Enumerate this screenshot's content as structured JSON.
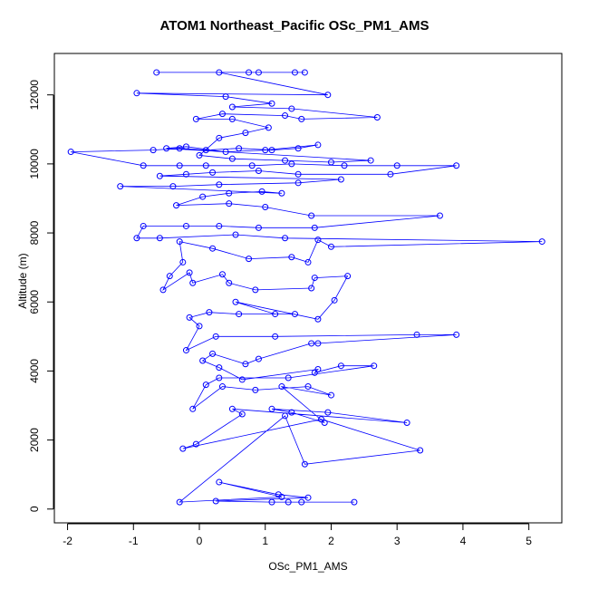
{
  "chart_data": {
    "type": "line",
    "title": "ATOM1 Northeast_Pacific OSc_PM1_AMS",
    "xlabel": "OSc_PM1_AMS",
    "ylabel": "Altitude (m)",
    "xlim": [
      -2.2,
      5.5
    ],
    "ylim": [
      -400,
      13200
    ],
    "x_ticks": [
      -2,
      -1,
      0,
      1,
      2,
      3,
      4,
      5
    ],
    "y_ticks": [
      0,
      2000,
      4000,
      6000,
      8000,
      10000,
      12000
    ],
    "series_color": "#0000ff",
    "marker": "open-circle",
    "grid": false,
    "points": [
      {
        "x": 2.35,
        "y": 200
      },
      {
        "x": 1.55,
        "y": 200
      },
      {
        "x": 1.35,
        "y": 200
      },
      {
        "x": 1.1,
        "y": 200
      },
      {
        "x": 0.25,
        "y": 230
      },
      {
        "x": 1.65,
        "y": 330
      },
      {
        "x": 1.2,
        "y": 420
      },
      {
        "x": 0.3,
        "y": 780
      },
      {
        "x": 1.25,
        "y": 350
      },
      {
        "x": -0.3,
        "y": 200
      },
      {
        "x": 1.3,
        "y": 2700
      },
      {
        "x": 1.6,
        "y": 1300
      },
      {
        "x": 3.35,
        "y": 1700
      },
      {
        "x": 1.85,
        "y": 2600
      },
      {
        "x": -0.25,
        "y": 1750
      },
      {
        "x": -0.05,
        "y": 1880
      },
      {
        "x": 0.65,
        "y": 2750
      },
      {
        "x": 0.5,
        "y": 2900
      },
      {
        "x": 3.15,
        "y": 2500
      },
      {
        "x": 1.95,
        "y": 2800
      },
      {
        "x": 1.1,
        "y": 2900
      },
      {
        "x": 1.4,
        "y": 2800
      },
      {
        "x": 1.9,
        "y": 2500
      },
      {
        "x": 1.25,
        "y": 3550
      },
      {
        "x": 2.0,
        "y": 3300
      },
      {
        "x": 1.65,
        "y": 3550
      },
      {
        "x": 0.85,
        "y": 3450
      },
      {
        "x": 0.35,
        "y": 3550
      },
      {
        "x": -0.1,
        "y": 2900
      },
      {
        "x": 0.1,
        "y": 3600
      },
      {
        "x": 0.3,
        "y": 3800
      },
      {
        "x": 1.35,
        "y": 3800
      },
      {
        "x": 2.65,
        "y": 4150
      },
      {
        "x": 2.15,
        "y": 4150
      },
      {
        "x": 1.75,
        "y": 3950
      },
      {
        "x": 1.8,
        "y": 4050
      },
      {
        "x": 0.65,
        "y": 3750
      },
      {
        "x": 0.3,
        "y": 4100
      },
      {
        "x": 0.05,
        "y": 4300
      },
      {
        "x": 0.2,
        "y": 4500
      },
      {
        "x": 0.7,
        "y": 4200
      },
      {
        "x": 0.9,
        "y": 4350
      },
      {
        "x": 1.7,
        "y": 4800
      },
      {
        "x": 1.8,
        "y": 4800
      },
      {
        "x": 3.9,
        "y": 5050
      },
      {
        "x": 3.3,
        "y": 5050
      },
      {
        "x": 1.15,
        "y": 5000
      },
      {
        "x": 0.25,
        "y": 5000
      },
      {
        "x": -0.2,
        "y": 4600
      },
      {
        "x": 0.0,
        "y": 5300
      },
      {
        "x": -0.15,
        "y": 5550
      },
      {
        "x": 0.15,
        "y": 5700
      },
      {
        "x": 0.6,
        "y": 5650
      },
      {
        "x": 1.45,
        "y": 5650
      },
      {
        "x": 1.15,
        "y": 5650
      },
      {
        "x": 0.55,
        "y": 6000
      },
      {
        "x": 1.8,
        "y": 5500
      },
      {
        "x": 2.05,
        "y": 6050
      },
      {
        "x": 2.25,
        "y": 6750
      },
      {
        "x": 1.75,
        "y": 6700
      },
      {
        "x": 1.7,
        "y": 6400
      },
      {
        "x": 0.85,
        "y": 6350
      },
      {
        "x": 0.45,
        "y": 6550
      },
      {
        "x": 0.35,
        "y": 6800
      },
      {
        "x": -0.1,
        "y": 6550
      },
      {
        "x": -0.15,
        "y": 6850
      },
      {
        "x": -0.55,
        "y": 6350
      },
      {
        "x": -0.45,
        "y": 6750
      },
      {
        "x": -0.25,
        "y": 7150
      },
      {
        "x": -0.3,
        "y": 7750
      },
      {
        "x": 0.2,
        "y": 7550
      },
      {
        "x": 0.75,
        "y": 7250
      },
      {
        "x": 1.4,
        "y": 7300
      },
      {
        "x": 1.65,
        "y": 7150
      },
      {
        "x": 1.8,
        "y": 7800
      },
      {
        "x": 2.0,
        "y": 7600
      },
      {
        "x": 5.2,
        "y": 7750
      },
      {
        "x": 1.3,
        "y": 7850
      },
      {
        "x": 0.55,
        "y": 7950
      },
      {
        "x": -0.6,
        "y": 7850
      },
      {
        "x": -0.95,
        "y": 7850
      },
      {
        "x": -0.85,
        "y": 8200
      },
      {
        "x": -0.2,
        "y": 8200
      },
      {
        "x": 0.3,
        "y": 8200
      },
      {
        "x": 0.9,
        "y": 8150
      },
      {
        "x": 1.75,
        "y": 8150
      },
      {
        "x": 3.65,
        "y": 8500
      },
      {
        "x": 1.7,
        "y": 8500
      },
      {
        "x": 1.0,
        "y": 8750
      },
      {
        "x": 0.45,
        "y": 8850
      },
      {
        "x": -0.35,
        "y": 8800
      },
      {
        "x": 0.05,
        "y": 9050
      },
      {
        "x": 0.45,
        "y": 9150
      },
      {
        "x": 0.95,
        "y": 9200
      },
      {
        "x": 1.25,
        "y": 9150
      },
      {
        "x": -1.2,
        "y": 9350
      },
      {
        "x": -0.4,
        "y": 9350
      },
      {
        "x": 0.3,
        "y": 9400
      },
      {
        "x": 1.5,
        "y": 9450
      },
      {
        "x": 2.15,
        "y": 9550
      },
      {
        "x": -0.6,
        "y": 9650
      },
      {
        "x": -0.2,
        "y": 9700
      },
      {
        "x": 0.2,
        "y": 9750
      },
      {
        "x": 0.9,
        "y": 9800
      },
      {
        "x": 1.5,
        "y": 9700
      },
      {
        "x": 2.9,
        "y": 9700
      },
      {
        "x": 3.9,
        "y": 9950
      },
      {
        "x": 3.0,
        "y": 9950
      },
      {
        "x": 2.2,
        "y": 9950
      },
      {
        "x": 1.4,
        "y": 10000
      },
      {
        "x": 0.8,
        "y": 9950
      },
      {
        "x": 0.1,
        "y": 9950
      },
      {
        "x": -0.3,
        "y": 9950
      },
      {
        "x": -0.85,
        "y": 9950
      },
      {
        "x": -1.95,
        "y": 10350
      },
      {
        "x": -0.7,
        "y": 10400
      },
      {
        "x": -0.3,
        "y": 10450
      },
      {
        "x": 0.1,
        "y": 10400
      },
      {
        "x": 0.6,
        "y": 10450
      },
      {
        "x": 1.1,
        "y": 10400
      },
      {
        "x": 1.5,
        "y": 10450
      },
      {
        "x": 1.8,
        "y": 10550
      },
      {
        "x": 1.0,
        "y": 10400
      },
      {
        "x": 0.4,
        "y": 10350
      },
      {
        "x": -0.2,
        "y": 10500
      },
      {
        "x": -0.5,
        "y": 10450
      },
      {
        "x": 2.6,
        "y": 10100
      },
      {
        "x": 2.0,
        "y": 10050
      },
      {
        "x": 1.3,
        "y": 10100
      },
      {
        "x": 0.5,
        "y": 10150
      },
      {
        "x": 0.0,
        "y": 10250
      },
      {
        "x": 0.3,
        "y": 10750
      },
      {
        "x": 0.7,
        "y": 10900
      },
      {
        "x": 1.05,
        "y": 11050
      },
      {
        "x": 0.5,
        "y": 11300
      },
      {
        "x": -0.05,
        "y": 11300
      },
      {
        "x": 0.35,
        "y": 11450
      },
      {
        "x": 1.3,
        "y": 11400
      },
      {
        "x": 1.55,
        "y": 11300
      },
      {
        "x": 2.7,
        "y": 11350
      },
      {
        "x": 1.4,
        "y": 11600
      },
      {
        "x": 0.5,
        "y": 11650
      },
      {
        "x": 1.1,
        "y": 11750
      },
      {
        "x": 0.4,
        "y": 11950
      },
      {
        "x": -0.95,
        "y": 12050
      },
      {
        "x": 1.95,
        "y": 12000
      },
      {
        "x": 0.3,
        "y": 12650
      },
      {
        "x": -0.65,
        "y": 12650
      },
      {
        "x": 0.75,
        "y": 12650
      },
      {
        "x": 1.6,
        "y": 12650
      },
      {
        "x": 1.45,
        "y": 12650
      },
      {
        "x": 0.9,
        "y": 12650
      }
    ]
  }
}
